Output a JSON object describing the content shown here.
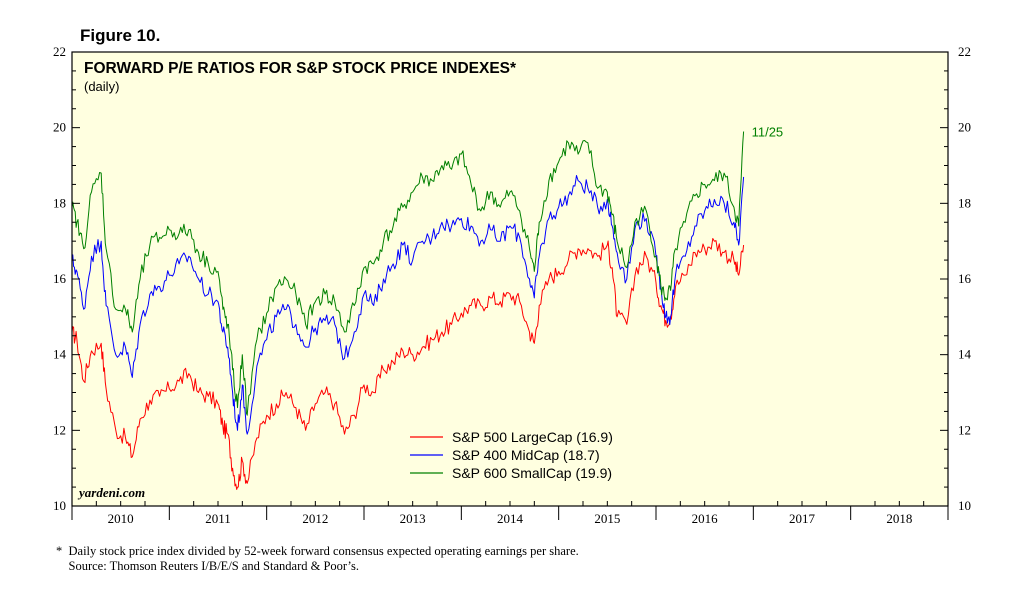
{
  "figure_label": "Figure 10.",
  "brand": "yardeni.com",
  "footnote_lines": [
    "*  Daily stock price index divided by 52-week forward consensus expected operating earnings per share.",
    "    Source: Thomson Reuters I/B/E/S and Standard & Poor’s."
  ],
  "end_label": "11/25",
  "colors": {
    "plot_bg": "#FFFFE0",
    "axis": "#000000"
  },
  "chart_data": {
    "type": "line",
    "title": "FORWARD P/E RATIOS FOR S&P STOCK PRICE INDEXES*",
    "subtitle": "(daily)",
    "ylim": [
      10,
      22
    ],
    "yticks": [
      10,
      12,
      14,
      16,
      18,
      20,
      22
    ],
    "xlim": [
      2010,
      2019
    ],
    "xtick_labels": [
      "2010",
      "2011",
      "2012",
      "2013",
      "2014",
      "2015",
      "2016",
      "2017",
      "2018"
    ],
    "grid": false,
    "legend_placement": "bottom-center",
    "series": [
      {
        "name": "S&P 500 LargeCap (16.9)",
        "color": "#FF0000",
        "x": [
          2010.0,
          2010.05,
          2010.12,
          2010.2,
          2010.3,
          2010.35,
          2010.45,
          2010.55,
          2010.62,
          2010.7,
          2010.8,
          2010.9,
          2011.0,
          2011.1,
          2011.2,
          2011.3,
          2011.4,
          2011.5,
          2011.55,
          2011.6,
          2011.65,
          2011.7,
          2011.75,
          2011.8,
          2011.9,
          2012.0,
          2012.1,
          2012.2,
          2012.3,
          2012.4,
          2012.5,
          2012.6,
          2012.7,
          2012.8,
          2012.9,
          2013.0,
          2013.1,
          2013.2,
          2013.3,
          2013.4,
          2013.5,
          2013.6,
          2013.7,
          2013.8,
          2013.9,
          2014.0,
          2014.1,
          2014.2,
          2014.3,
          2014.4,
          2014.5,
          2014.6,
          2014.7,
          2014.75,
          2014.8,
          2014.9,
          2015.0,
          2015.1,
          2015.2,
          2015.3,
          2015.4,
          2015.5,
          2015.55,
          2015.6,
          2015.7,
          2015.8,
          2015.9,
          2016.0,
          2016.05,
          2016.1,
          2016.15,
          2016.2,
          2016.3,
          2016.4,
          2016.5,
          2016.6,
          2016.7,
          2016.8,
          2016.85,
          2016.9
        ],
        "y": [
          14.6,
          14.4,
          13.3,
          14.1,
          14.3,
          13.1,
          12.0,
          11.8,
          11.3,
          12.3,
          12.8,
          12.9,
          13.1,
          13.3,
          13.5,
          13.0,
          12.9,
          12.7,
          12.1,
          11.9,
          11.0,
          10.5,
          11.2,
          10.6,
          11.8,
          12.4,
          12.7,
          13.0,
          12.6,
          12.0,
          12.7,
          13.0,
          12.7,
          11.9,
          12.4,
          13.2,
          13.0,
          13.6,
          13.8,
          14.1,
          14.0,
          14.2,
          14.4,
          14.6,
          14.8,
          15.1,
          15.3,
          15.3,
          15.5,
          15.4,
          15.6,
          15.4,
          14.6,
          14.3,
          15.3,
          16.0,
          16.2,
          16.5,
          16.8,
          16.8,
          16.6,
          16.9,
          16.3,
          15.0,
          14.8,
          16.3,
          16.6,
          15.9,
          15.3,
          14.9,
          15.0,
          15.8,
          16.1,
          16.7,
          16.8,
          17.0,
          16.7,
          16.5,
          16.1,
          16.9
        ]
      },
      {
        "name": "S&P 400 MidCap (18.7)",
        "color": "#0000FF",
        "x": [
          2010.0,
          2010.05,
          2010.12,
          2010.2,
          2010.3,
          2010.35,
          2010.45,
          2010.55,
          2010.62,
          2010.7,
          2010.8,
          2010.9,
          2011.0,
          2011.1,
          2011.2,
          2011.3,
          2011.4,
          2011.5,
          2011.55,
          2011.6,
          2011.65,
          2011.7,
          2011.75,
          2011.8,
          2011.9,
          2012.0,
          2012.1,
          2012.2,
          2012.3,
          2012.4,
          2012.5,
          2012.6,
          2012.7,
          2012.8,
          2012.9,
          2013.0,
          2013.1,
          2013.2,
          2013.3,
          2013.4,
          2013.5,
          2013.6,
          2013.7,
          2013.8,
          2013.9,
          2014.0,
          2014.1,
          2014.2,
          2014.3,
          2014.4,
          2014.5,
          2014.6,
          2014.7,
          2014.75,
          2014.8,
          2014.9,
          2015.0,
          2015.1,
          2015.2,
          2015.3,
          2015.4,
          2015.5,
          2015.55,
          2015.6,
          2015.7,
          2015.8,
          2015.9,
          2016.0,
          2016.05,
          2016.1,
          2016.15,
          2016.2,
          2016.3,
          2016.4,
          2016.5,
          2016.6,
          2016.7,
          2016.8,
          2016.85,
          2016.9
        ],
        "y": [
          16.5,
          16.2,
          15.2,
          16.6,
          17.0,
          15.3,
          14.0,
          14.2,
          13.4,
          14.8,
          15.6,
          15.8,
          16.1,
          16.4,
          16.6,
          16.0,
          15.6,
          15.4,
          14.6,
          14.2,
          13.0,
          12.0,
          13.2,
          11.9,
          13.7,
          14.4,
          15.0,
          15.2,
          14.8,
          14.2,
          14.7,
          14.9,
          14.8,
          13.9,
          14.6,
          15.6,
          15.3,
          16.0,
          16.4,
          16.9,
          16.5,
          17.0,
          17.1,
          17.5,
          17.4,
          17.6,
          17.4,
          17.0,
          17.3,
          17.0,
          17.4,
          17.1,
          16.0,
          15.5,
          16.6,
          17.6,
          17.9,
          18.2,
          18.6,
          18.4,
          17.9,
          18.1,
          17.4,
          16.7,
          16.0,
          17.5,
          17.6,
          16.6,
          15.8,
          15.0,
          15.0,
          16.1,
          16.6,
          17.4,
          17.8,
          18.1,
          18.0,
          17.5,
          16.9,
          18.7
        ]
      },
      {
        "name": "S&P 600 SmallCap (19.9)",
        "color": "#008000",
        "x": [
          2010.0,
          2010.05,
          2010.12,
          2010.2,
          2010.3,
          2010.35,
          2010.45,
          2010.55,
          2010.62,
          2010.7,
          2010.8,
          2010.9,
          2011.0,
          2011.1,
          2011.2,
          2011.3,
          2011.4,
          2011.5,
          2011.55,
          2011.6,
          2011.65,
          2011.7,
          2011.75,
          2011.8,
          2011.9,
          2012.0,
          2012.1,
          2012.2,
          2012.3,
          2012.4,
          2012.5,
          2012.6,
          2012.7,
          2012.8,
          2012.9,
          2013.0,
          2013.1,
          2013.2,
          2013.3,
          2013.4,
          2013.5,
          2013.6,
          2013.7,
          2013.8,
          2013.9,
          2014.0,
          2014.1,
          2014.2,
          2014.3,
          2014.4,
          2014.5,
          2014.6,
          2014.7,
          2014.75,
          2014.8,
          2014.9,
          2015.0,
          2015.1,
          2015.2,
          2015.3,
          2015.4,
          2015.5,
          2015.55,
          2015.6,
          2015.7,
          2015.8,
          2015.9,
          2016.0,
          2016.05,
          2016.1,
          2016.15,
          2016.2,
          2016.3,
          2016.4,
          2016.5,
          2016.6,
          2016.7,
          2016.8,
          2016.85,
          2016.9
        ],
        "y": [
          17.9,
          17.5,
          16.8,
          18.3,
          18.8,
          16.8,
          15.2,
          15.2,
          14.6,
          16.0,
          16.9,
          17.1,
          17.3,
          17.2,
          17.3,
          16.7,
          16.4,
          16.2,
          15.2,
          14.8,
          13.6,
          12.6,
          14.0,
          12.4,
          14.4,
          15.1,
          15.8,
          16.0,
          15.6,
          14.8,
          15.4,
          15.6,
          15.4,
          14.6,
          15.3,
          16.3,
          16.4,
          17.0,
          17.4,
          17.9,
          18.3,
          18.7,
          18.6,
          19.0,
          18.9,
          19.3,
          18.5,
          17.8,
          18.3,
          17.9,
          18.3,
          17.8,
          16.8,
          16.2,
          17.5,
          18.6,
          19.1,
          19.6,
          19.3,
          19.6,
          18.4,
          18.3,
          17.7,
          17.0,
          16.3,
          17.6,
          17.8,
          16.6,
          15.8,
          15.5,
          15.7,
          16.8,
          17.5,
          18.2,
          18.5,
          18.6,
          18.8,
          17.9,
          17.4,
          19.9
        ]
      }
    ]
  }
}
